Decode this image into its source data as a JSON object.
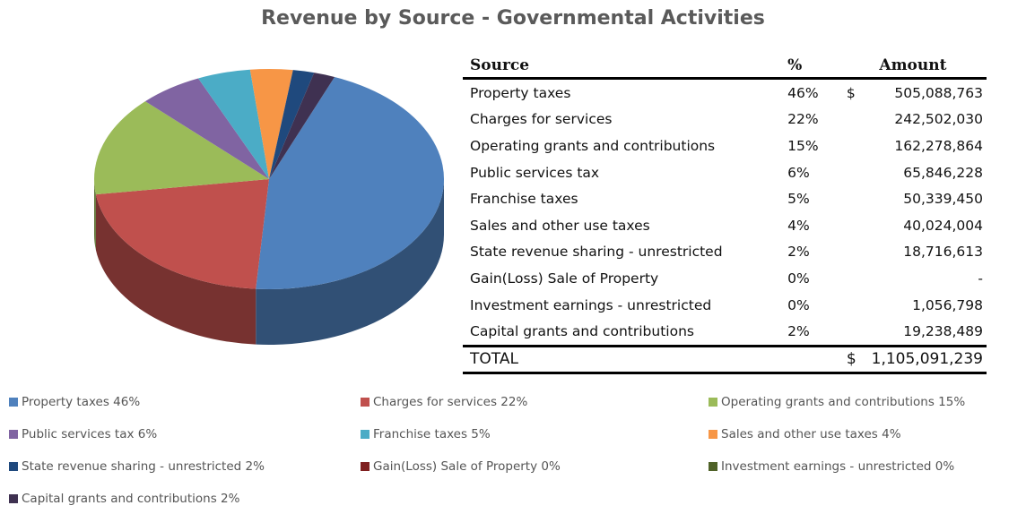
{
  "chart_data": {
    "type": "pie",
    "title": "Revenue by Source - Governmental Activities",
    "slices": [
      {
        "label": "Property taxes",
        "legend": "Property taxes  46%",
        "percent": 46,
        "color": "#4f81bd"
      },
      {
        "label": "Charges for services",
        "legend": "Charges for services  22%",
        "percent": 22,
        "color": "#c0504d"
      },
      {
        "label": "Operating grants and contributions",
        "legend": "Operating grants and contributions  15%",
        "percent": 15,
        "color": "#9bbb59"
      },
      {
        "label": "Public services tax",
        "legend": "Public services tax  6%",
        "percent": 6,
        "color": "#8064a2"
      },
      {
        "label": "Franchise taxes",
        "legend": "Franchise taxes  5%",
        "percent": 5,
        "color": "#4bacc6"
      },
      {
        "label": "Sales and other use taxes",
        "legend": "Sales and other use taxes  4%",
        "percent": 4,
        "color": "#f79646"
      },
      {
        "label": "State revenue sharing - unrestricted",
        "legend": "State revenue sharing - unrestricted  2%",
        "percent": 2,
        "color": "#1f497d"
      },
      {
        "label": "Gain(Loss) Sale of Property",
        "legend": "Gain(Loss) Sale of Property 0%",
        "percent": 0,
        "color": "#7f1f1f"
      },
      {
        "label": "Investment earnings - unrestricted",
        "legend": "Investment earnings - unrestricted  0%",
        "percent": 0,
        "color": "#4f6228"
      },
      {
        "label": "Capital grants and contributions",
        "legend": "Capital grants and contributions 2%",
        "percent": 2,
        "color": "#3f3151"
      }
    ],
    "legend_position": "bottom"
  },
  "table": {
    "headers": {
      "source": "Source",
      "percent": "%",
      "amount": "Amount"
    },
    "rows": [
      {
        "source": "Property taxes",
        "percent": "46%",
        "currency": "$",
        "amount": "505,088,763"
      },
      {
        "source": "Charges for services",
        "percent": "22%",
        "currency": "",
        "amount": "242,502,030"
      },
      {
        "source": "Operating grants and contributions",
        "percent": "15%",
        "currency": "",
        "amount": "162,278,864"
      },
      {
        "source": "Public services tax",
        "percent": "6%",
        "currency": "",
        "amount": "65,846,228"
      },
      {
        "source": "Franchise taxes",
        "percent": "5%",
        "currency": "",
        "amount": "50,339,450"
      },
      {
        "source": "Sales and other use taxes",
        "percent": "4%",
        "currency": "",
        "amount": "40,024,004"
      },
      {
        "source": "State revenue sharing - unrestricted",
        "percent": "2%",
        "currency": "",
        "amount": "18,716,613"
      },
      {
        "source": "Gain(Loss) Sale of Property",
        "percent": "0%",
        "currency": "",
        "amount": "-"
      },
      {
        "source": "Investment earnings - unrestricted",
        "percent": "0%",
        "currency": "",
        "amount": "1,056,798"
      },
      {
        "source": "Capital grants and contributions",
        "percent": "2%",
        "currency": "",
        "amount": "19,238,489"
      }
    ],
    "total": {
      "label": "TOTAL",
      "currency": "$",
      "amount": "1,105,091,239"
    }
  }
}
